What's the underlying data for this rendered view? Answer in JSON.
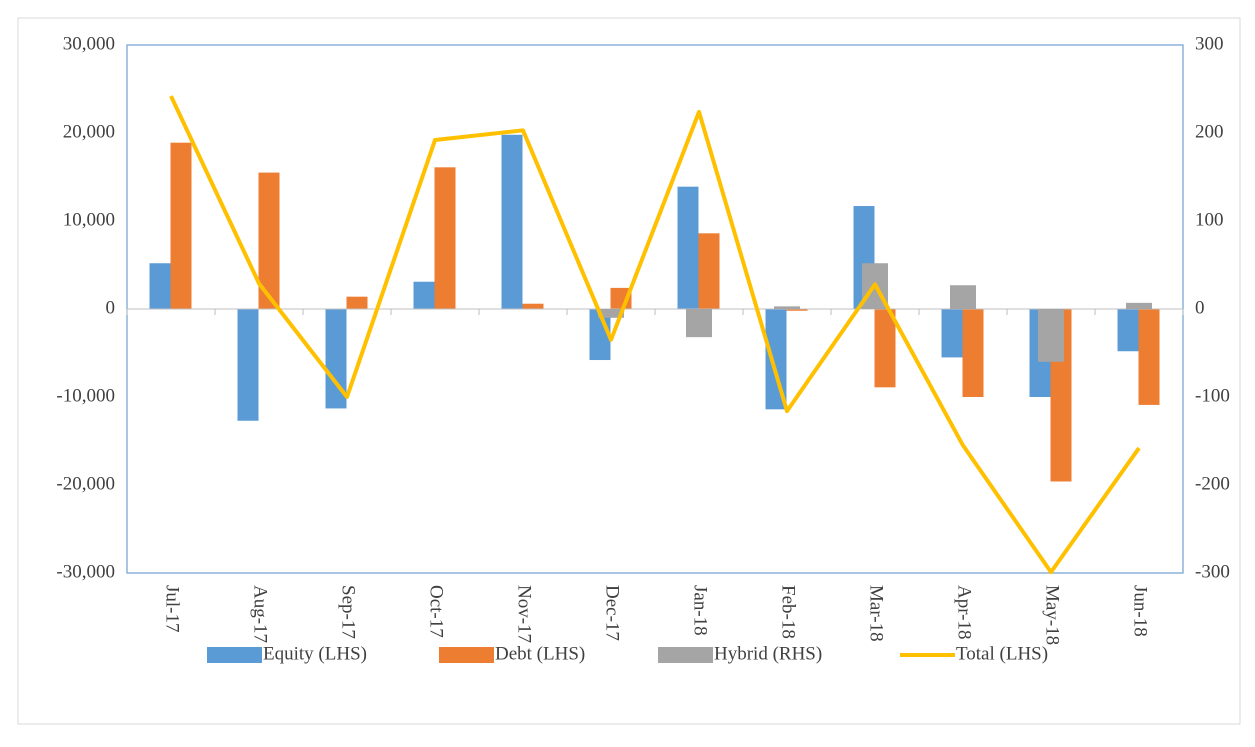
{
  "chart_data": {
    "type": "bar-line",
    "categories": [
      "Jul-17",
      "Aug-17",
      "Sep-17",
      "Oct-17",
      "Nov-17",
      "Dec-17",
      "Jan-18",
      "Feb-18",
      "Mar-18",
      "Apr-18",
      "May-18",
      "Jun-18"
    ],
    "series": [
      {
        "name": "Equity (LHS)",
        "color": "#5b9bd5",
        "type": "bar",
        "values": [
          5200,
          -12700,
          -11300,
          3100,
          19800,
          -5800,
          13900,
          -11400,
          11700,
          -5500,
          -10000,
          -4800
        ]
      },
      {
        "name": "Debt (LHS)",
        "color": "#ed7d31",
        "type": "bar",
        "values": [
          18900,
          15500,
          1400,
          16100,
          600,
          2400,
          8600,
          -200,
          -8900,
          -10000,
          -19600,
          -10900
        ]
      },
      {
        "name": "Hybrid (RHS)",
        "color": "#a5a5a5",
        "type": "bar",
        "axis": "y2",
        "values": [
          0,
          0,
          0,
          0,
          0,
          -10,
          -32,
          3,
          52,
          27,
          -60,
          7
        ]
      },
      {
        "name": "Total (LHS)",
        "color": "#ffc000",
        "type": "line",
        "values": [
          24200,
          2900,
          -10000,
          19200,
          20300,
          -3500,
          22400,
          -11600,
          2800,
          -15500,
          -29900,
          -15800
        ]
      }
    ],
    "ylim": [
      -30000,
      30000
    ],
    "yticks": [
      {
        "value": -30000,
        "label": "-30,000"
      },
      {
        "value": -20000,
        "label": "-20,000"
      },
      {
        "value": -10000,
        "label": "-10,000"
      },
      0,
      {
        "value": 10000,
        "label": "10,000"
      },
      {
        "value": 20000,
        "label": "20,000"
      },
      {
        "value": 30000,
        "label": "30,000"
      }
    ],
    "y2lim": [
      -300,
      300
    ],
    "y2ticks": [
      -300,
      -200,
      -100,
      0,
      100,
      200,
      300
    ],
    "legend": "bottom"
  }
}
